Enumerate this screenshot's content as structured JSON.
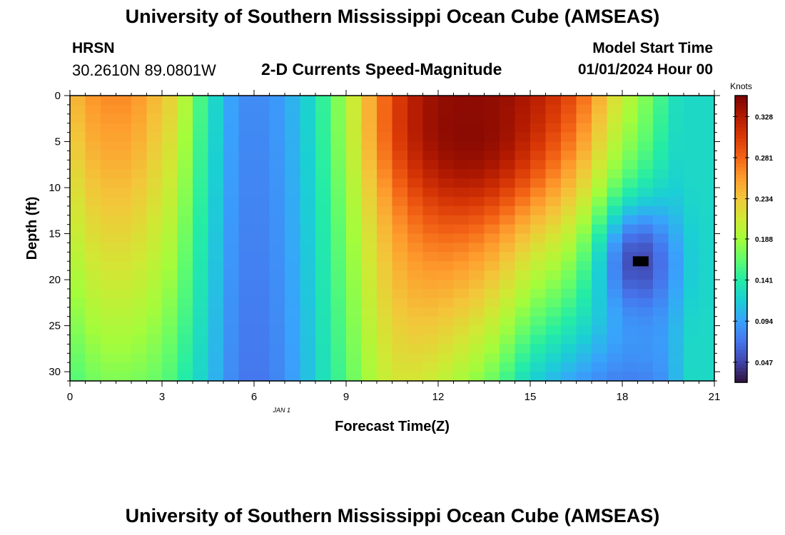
{
  "title": "University of Southern Mississippi Ocean Cube (AMSEAS)",
  "footer_title": "University of Southern Mississippi Ocean Cube (AMSEAS)",
  "station": "HRSN",
  "coordinates": "30.2610N  89.0801W",
  "subtitle": "2-D Currents Speed-Magnitude",
  "model_start_label": "Model Start Time",
  "model_start_value": "01/01/2024 Hour 00",
  "chart_data": {
    "type": "heatmap",
    "title": "2-D Currents Speed-Magnitude",
    "xlabel": "Forecast Time(Z)",
    "ylabel": "Depth (ft)",
    "date_annotation": "JAN 1",
    "xlim": [
      0,
      21
    ],
    "ylim": [
      31,
      0
    ],
    "x_ticks": [
      0,
      3,
      6,
      9,
      12,
      15,
      18,
      21
    ],
    "y_ticks": [
      0,
      5,
      10,
      15,
      20,
      25,
      30
    ],
    "x_step_hours": 0.5,
    "colorbar": {
      "label": "Knots",
      "min": 0.024,
      "max": 0.352,
      "ticks": [
        0.047,
        0.094,
        0.141,
        0.188,
        0.234,
        0.281,
        0.328
      ],
      "colors": [
        "#30123b",
        "#4145ab",
        "#4675ed",
        "#39a2fc",
        "#1bcfd4",
        "#24eca6",
        "#61fc6c",
        "#a4fc3b",
        "#d1e834",
        "#f3c63a",
        "#fe9b2d",
        "#f36315",
        "#d93806",
        "#b11901",
        "#7a0402"
      ]
    },
    "surface_profile": [
      [
        0,
        0.235
      ],
      [
        0.5,
        0.255
      ],
      [
        1,
        0.265
      ],
      [
        2,
        0.265
      ],
      [
        3,
        0.235
      ],
      [
        3.5,
        0.22
      ],
      [
        4,
        0.17
      ],
      [
        4.5,
        0.14
      ],
      [
        5,
        0.105
      ],
      [
        5.5,
        0.085
      ],
      [
        6,
        0.08
      ],
      [
        6.5,
        0.085
      ],
      [
        7,
        0.095
      ],
      [
        7.5,
        0.11
      ],
      [
        8,
        0.13
      ],
      [
        8.5,
        0.16
      ],
      [
        9,
        0.185
      ],
      [
        9.5,
        0.22
      ],
      [
        10,
        0.255
      ],
      [
        10.5,
        0.28
      ],
      [
        11,
        0.305
      ],
      [
        12,
        0.335
      ],
      [
        13,
        0.345
      ],
      [
        14,
        0.335
      ],
      [
        15,
        0.32
      ],
      [
        16,
        0.3
      ],
      [
        16.5,
        0.285
      ],
      [
        17,
        0.26
      ],
      [
        17.5,
        0.23
      ],
      [
        18,
        0.205
      ],
      [
        18.5,
        0.185
      ],
      [
        19,
        0.165
      ],
      [
        19.5,
        0.14
      ],
      [
        20,
        0.12
      ],
      [
        20.5,
        0.13
      ],
      [
        21,
        0.12
      ]
    ],
    "bottom_profile": [
      [
        0,
        0.155
      ],
      [
        0.5,
        0.165
      ],
      [
        1,
        0.175
      ],
      [
        2,
        0.175
      ],
      [
        3,
        0.165
      ],
      [
        3.5,
        0.15
      ],
      [
        4,
        0.13
      ],
      [
        4.5,
        0.115
      ],
      [
        5,
        0.09
      ],
      [
        5.5,
        0.075
      ],
      [
        6,
        0.07
      ],
      [
        6.5,
        0.075
      ],
      [
        7,
        0.085
      ],
      [
        7.5,
        0.1
      ],
      [
        8,
        0.12
      ],
      [
        8.5,
        0.14
      ],
      [
        9,
        0.16
      ],
      [
        9.5,
        0.18
      ],
      [
        10,
        0.2
      ],
      [
        10.5,
        0.21
      ],
      [
        11,
        0.215
      ],
      [
        12,
        0.205
      ],
      [
        12.5,
        0.195
      ],
      [
        13,
        0.185
      ],
      [
        13.5,
        0.175
      ],
      [
        14,
        0.16
      ],
      [
        14.5,
        0.14
      ],
      [
        15,
        0.12
      ],
      [
        16,
        0.1
      ],
      [
        17,
        0.085
      ],
      [
        18,
        0.075
      ],
      [
        19,
        0.08
      ],
      [
        19.5,
        0.09
      ],
      [
        20,
        0.12
      ],
      [
        20.5,
        0.13
      ],
      [
        21,
        0.12
      ]
    ],
    "core_center": {
      "time": 13,
      "depth": 4,
      "value": 0.345
    },
    "minimum": {
      "time": 18.5,
      "depth": 18,
      "value": 0.03
    },
    "marker": {
      "time": 18.6,
      "depth": 18
    }
  }
}
